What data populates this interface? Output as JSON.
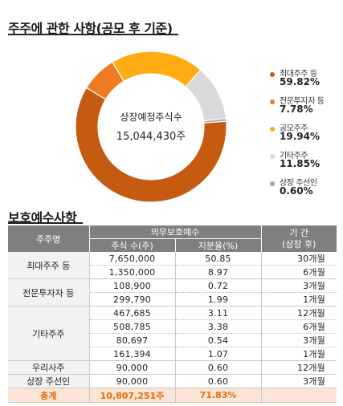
{
  "section1": {
    "title": "주주에 관한 사항(공모 후 기준)"
  },
  "section2": {
    "title": "보호예수사항"
  },
  "chart_data": {
    "type": "pie",
    "title": "주주에 관한 사항(공모 후 기준)",
    "center_label": "상장예정주식수",
    "center_value": "15,044,430주",
    "legend_position": "right",
    "series": [
      {
        "name": "최대주주 등",
        "value": 59.82,
        "label": "59.82%",
        "color": "#c55a11"
      },
      {
        "name": "전문투자자 등",
        "value": 7.78,
        "label": "7.78%",
        "color": "#ee7b22"
      },
      {
        "name": "공모주주",
        "value": 19.94,
        "label": "19.94%",
        "color": "#ffac14"
      },
      {
        "name": "기타주주",
        "value": 11.85,
        "label": "11.85%",
        "color": "#d9d9d9"
      },
      {
        "name": "상장 주선인",
        "value": 0.6,
        "label": "0.60%",
        "color": "#a6a6a6"
      }
    ]
  },
  "table": {
    "headers": {
      "holder": "주주명",
      "obligation": "의무보호예수",
      "shares": "주식 수(주)",
      "ratio": "지분율(%)",
      "period_line1": "기 간",
      "period_line2": "(상장 후)"
    },
    "groups": [
      {
        "name": "최대주주 등",
        "rows": [
          {
            "shares": "7,650,000",
            "ratio": "50.85",
            "period": "30개월"
          },
          {
            "shares": "1,350,000",
            "ratio": "8.97",
            "period": "6개월"
          }
        ]
      },
      {
        "name": "전문투자자 등",
        "rows": [
          {
            "shares": "108,900",
            "ratio": "0.72",
            "period": "3개월"
          },
          {
            "shares": "299,790",
            "ratio": "1.99",
            "period": "1개월"
          }
        ]
      },
      {
        "name": "기타주주",
        "rows": [
          {
            "shares": "467,685",
            "ratio": "3.11",
            "period": "12개월"
          },
          {
            "shares": "508,785",
            "ratio": "3.38",
            "period": "6개월"
          },
          {
            "shares": "80,697",
            "ratio": "0.54",
            "period": "3개월"
          },
          {
            "shares": "161,394",
            "ratio": "1.07",
            "period": "1개월"
          }
        ]
      },
      {
        "name": "우리사주",
        "rows": [
          {
            "shares": "90,000",
            "ratio": "0.60",
            "period": "12개월"
          }
        ]
      },
      {
        "name": "상장 주선인",
        "rows": [
          {
            "shares": "90,000",
            "ratio": "0.60",
            "period": "3개월"
          }
        ]
      }
    ],
    "total": {
      "label": "총계",
      "shares": "10,807,251주",
      "ratio": "71.83%",
      "period": ""
    }
  }
}
